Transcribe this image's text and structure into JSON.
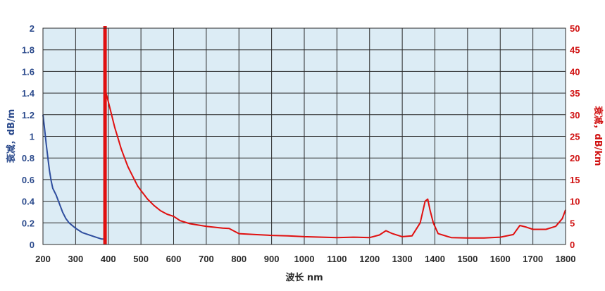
{
  "chart_data": {
    "type": "line",
    "title": "",
    "xlabel": "波长 nm",
    "ylabel_left": "衰减，dB/m",
    "ylabel_right": "衰减，dB/km",
    "xlim": [
      200,
      1800
    ],
    "ylim_left": [
      0,
      2
    ],
    "ylim_right": [
      0,
      50
    ],
    "x_ticks": [
      200,
      300,
      400,
      500,
      600,
      700,
      800,
      900,
      1000,
      1100,
      1200,
      1300,
      1400,
      1500,
      1600,
      1700,
      1800
    ],
    "y_left_ticks": [
      "0",
      "0.2",
      "0.4",
      "0.6",
      "0.8",
      "1",
      "1.2",
      "1.4",
      "1.6",
      "1.8",
      "2"
    ],
    "y_right_ticks": [
      "0",
      "5",
      "10",
      "15",
      "20",
      "25",
      "30",
      "35",
      "40",
      "45",
      "50"
    ],
    "grid": true,
    "background_color": "#dcecf5",
    "divider_wavelength": 390,
    "series": [
      {
        "axis": "left",
        "unit": "dB/m",
        "color": "#2e4d9e",
        "points": [
          [
            200,
            1.2
          ],
          [
            205,
            1.07
          ],
          [
            210,
            0.93
          ],
          [
            215,
            0.8
          ],
          [
            220,
            0.68
          ],
          [
            225,
            0.59
          ],
          [
            230,
            0.52
          ],
          [
            240,
            0.46
          ],
          [
            250,
            0.38
          ],
          [
            260,
            0.3
          ],
          [
            270,
            0.24
          ],
          [
            280,
            0.2
          ],
          [
            300,
            0.15
          ],
          [
            320,
            0.11
          ],
          [
            340,
            0.09
          ],
          [
            360,
            0.07
          ],
          [
            380,
            0.05
          ],
          [
            390,
            0.05
          ]
        ]
      },
      {
        "axis": "right",
        "unit": "dB/km",
        "color": "#e01010",
        "points": [
          [
            390,
            36
          ],
          [
            400,
            33
          ],
          [
            410,
            30
          ],
          [
            420,
            27
          ],
          [
            430,
            24.5
          ],
          [
            440,
            22
          ],
          [
            450,
            20
          ],
          [
            460,
            18
          ],
          [
            470,
            16.5
          ],
          [
            480,
            15
          ],
          [
            490,
            13.5
          ],
          [
            500,
            12.5
          ],
          [
            520,
            10.5
          ],
          [
            540,
            9
          ],
          [
            560,
            7.8
          ],
          [
            580,
            7
          ],
          [
            600,
            6.5
          ],
          [
            620,
            5.5
          ],
          [
            650,
            4.8
          ],
          [
            700,
            4.2
          ],
          [
            750,
            3.8
          ],
          [
            770,
            3.7
          ],
          [
            800,
            2.5
          ],
          [
            850,
            2.3
          ],
          [
            900,
            2.1
          ],
          [
            950,
            2
          ],
          [
            1000,
            1.8
          ],
          [
            1100,
            1.6
          ],
          [
            1150,
            1.7
          ],
          [
            1200,
            1.6
          ],
          [
            1230,
            2.2
          ],
          [
            1250,
            3.2
          ],
          [
            1270,
            2.5
          ],
          [
            1300,
            1.8
          ],
          [
            1330,
            2
          ],
          [
            1355,
            5
          ],
          [
            1370,
            10
          ],
          [
            1378,
            10.5
          ],
          [
            1385,
            8
          ],
          [
            1395,
            5
          ],
          [
            1410,
            2.5
          ],
          [
            1450,
            1.6
          ],
          [
            1500,
            1.5
          ],
          [
            1550,
            1.5
          ],
          [
            1600,
            1.7
          ],
          [
            1640,
            2.3
          ],
          [
            1660,
            4.4
          ],
          [
            1680,
            4
          ],
          [
            1700,
            3.5
          ],
          [
            1740,
            3.5
          ],
          [
            1770,
            4.2
          ],
          [
            1790,
            6
          ],
          [
            1800,
            8
          ]
        ]
      }
    ]
  }
}
